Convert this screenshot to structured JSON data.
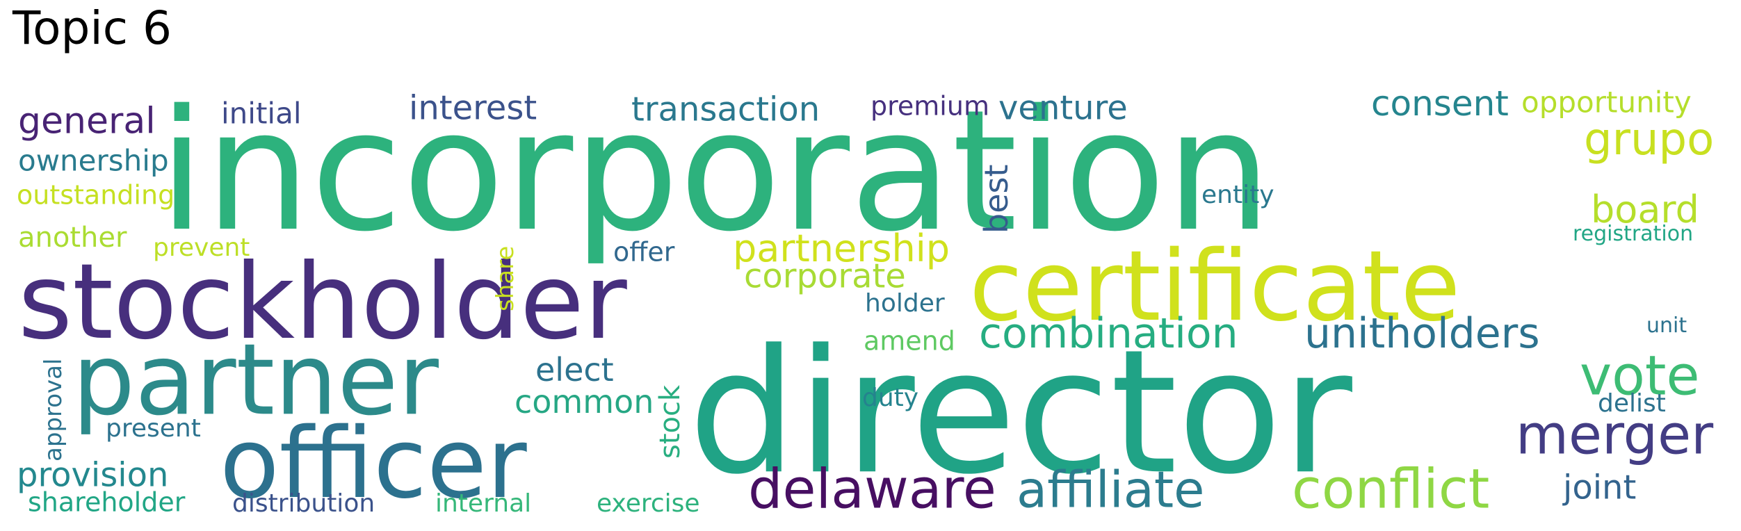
{
  "title": "Topic 6",
  "colors": {
    "c1": "#440154",
    "c2": "#472c7a",
    "c3": "#3b528b",
    "c4": "#2c728e",
    "c5": "#21918c",
    "c6": "#28ae80",
    "c7": "#5ec962",
    "c8": "#addc30",
    "c9": "#d0e11c"
  },
  "words": {
    "incorporation": "incorporation",
    "director": "director",
    "stockholder": "stockholder",
    "certificate": "certificate",
    "partner": "partner",
    "officer": "officer",
    "delaware": "delaware",
    "conflict": "conflict",
    "affiliate": "affiliate",
    "merger": "merger",
    "vote": "vote",
    "unitholders": "unitholders",
    "combination": "combination",
    "grupo": "grupo",
    "partnership": "partnership",
    "general": "general",
    "interest": "interest",
    "transaction": "transaction",
    "venture": "venture",
    "consent": "consent",
    "opportunity": "opportunity",
    "initial": "initial",
    "premium": "premium",
    "ownership": "ownership",
    "outstanding": "outstanding",
    "another": "another",
    "prevent": "prevent",
    "offer": "offer",
    "corporate": "corporate",
    "board": "board",
    "registration": "registration",
    "entity": "entity",
    "best": "best",
    "holder": "holder",
    "amend": "amend",
    "elect": "elect",
    "common": "common",
    "duty": "duty",
    "stock": "stock",
    "share": "share",
    "approval": "approval",
    "present": "present",
    "provision": "provision",
    "shareholder": "shareholder",
    "distribution": "distribution",
    "internal": "internal",
    "exercise": "exercise",
    "joint": "joint",
    "delist": "delist",
    "unit": "unit"
  }
}
